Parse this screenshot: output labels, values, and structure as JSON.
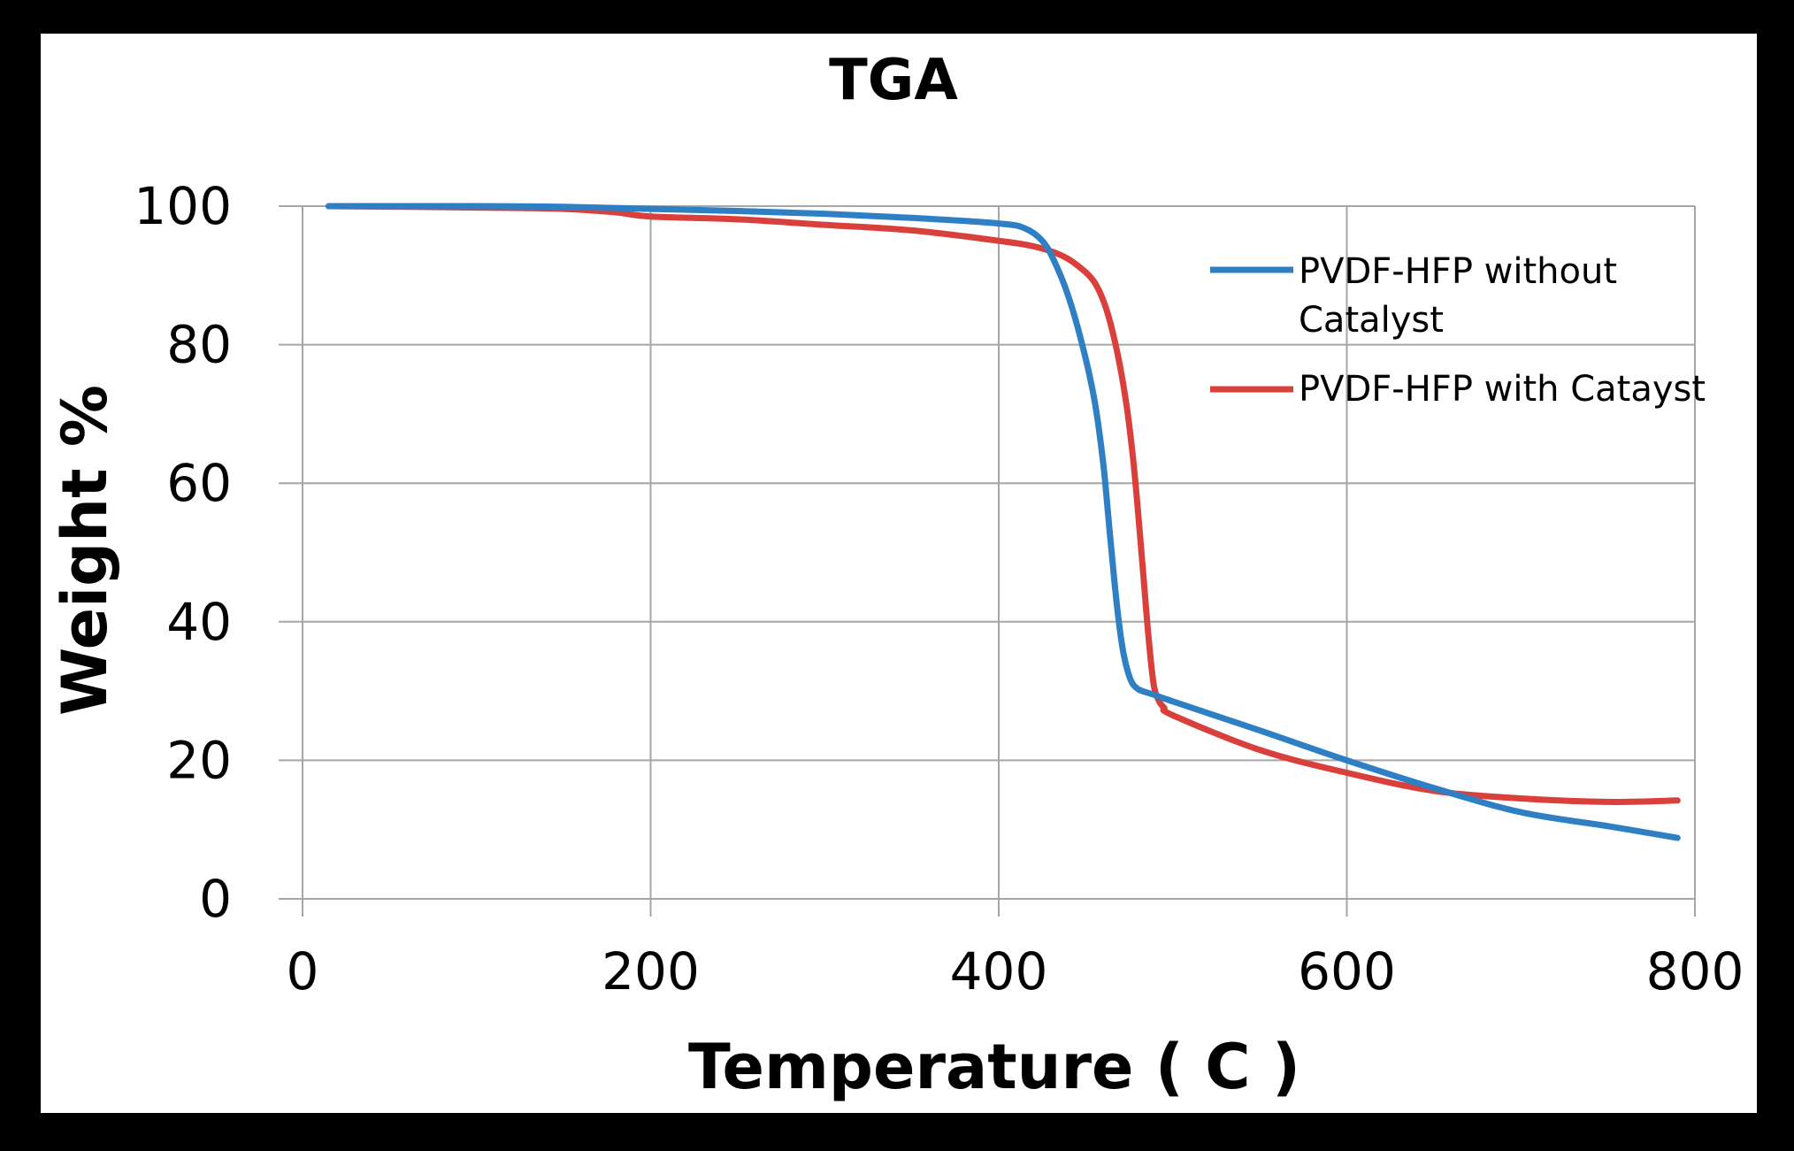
{
  "chart_data": {
    "type": "line",
    "title": "TGA",
    "xlabel": "Temperature ( C )",
    "ylabel": "Weight %",
    "xlim": [
      0,
      800
    ],
    "ylim": [
      0,
      100
    ],
    "xticks": [
      0,
      200,
      400,
      600,
      800
    ],
    "yticks": [
      0,
      20,
      40,
      60,
      80,
      100
    ],
    "grid": true,
    "legend_position": "top-right",
    "series": [
      {
        "name": "PVDF-HFP without Catalyst",
        "legend_lines": [
          "PVDF-HFP without",
          "Catalyst"
        ],
        "color": "#2e7fc4",
        "x": [
          15,
          100,
          150,
          200,
          250,
          300,
          350,
          400,
          415,
          425,
          432,
          440,
          448,
          455,
          460,
          463,
          466,
          469,
          472,
          476,
          480,
          485,
          490,
          500,
          550,
          600,
          650,
          700,
          750,
          790
        ],
        "y": [
          100,
          100,
          99.9,
          99.6,
          99.3,
          98.9,
          98.3,
          97.5,
          96.8,
          95,
          92,
          87,
          80,
          72,
          63,
          55,
          47,
          40,
          35,
          31.5,
          30.3,
          29.8,
          29.4,
          28.5,
          24.3,
          20,
          16,
          12.5,
          10.5,
          8.8
        ]
      },
      {
        "name": "PVDF-HFP with Catayst",
        "legend_lines": [
          "PVDF-HFP with Catayst"
        ],
        "color": "#d9403b",
        "x": [
          15,
          100,
          150,
          180,
          200,
          250,
          300,
          350,
          400,
          420,
          435,
          445,
          455,
          462,
          468,
          473,
          477,
          480,
          483,
          486,
          489,
          492,
          495,
          500,
          550,
          600,
          650,
          700,
          750,
          790
        ],
        "y": [
          100,
          99.8,
          99.6,
          99.1,
          98.5,
          98.1,
          97.3,
          96.5,
          95,
          94.2,
          93,
          91.5,
          89,
          85,
          79,
          72,
          64,
          56,
          47,
          38,
          31,
          28.6,
          27.6,
          26.5,
          21.5,
          18.2,
          15.6,
          14.5,
          14,
          14.2
        ]
      }
    ]
  }
}
